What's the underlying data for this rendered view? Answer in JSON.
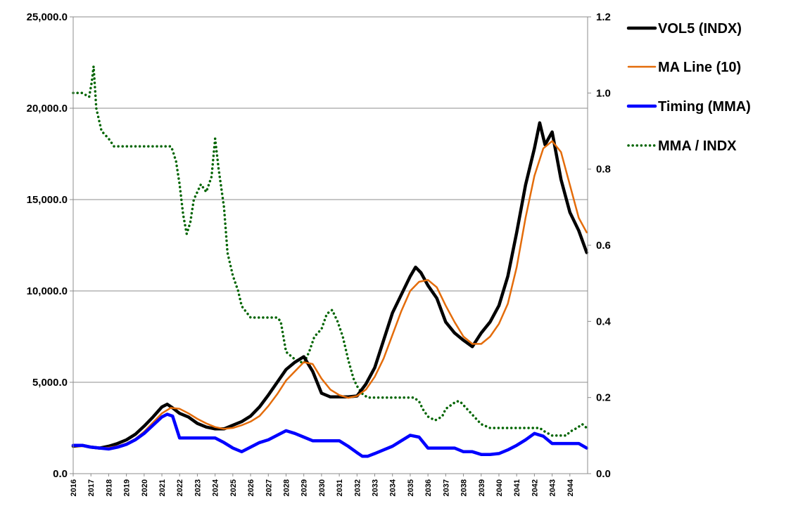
{
  "chart_data": {
    "type": "line",
    "title": "",
    "xlabel": "",
    "ylabel": "",
    "y2label": "",
    "xlim": [
      2016,
      2045
    ],
    "ylim": [
      0,
      25000
    ],
    "y2lim": [
      0,
      1.2
    ],
    "grid": true,
    "legend_position": "top-right",
    "y_ticks": [
      {
        "value": 0,
        "label": "0.0"
      },
      {
        "value": 5000,
        "label": "5,000.0"
      },
      {
        "value": 10000,
        "label": "10,000.0"
      },
      {
        "value": 15000,
        "label": "15,000.0"
      },
      {
        "value": 20000,
        "label": "20,000.0"
      },
      {
        "value": 25000,
        "label": "25,000.0"
      }
    ],
    "y2_ticks": [
      {
        "value": 0,
        "label": "0.0"
      },
      {
        "value": 0.2,
        "label": "0.2"
      },
      {
        "value": 0.4,
        "label": "0.4"
      },
      {
        "value": 0.6,
        "label": "0.6"
      },
      {
        "value": 0.8,
        "label": "0.8"
      },
      {
        "value": 1.0,
        "label": "1.0"
      },
      {
        "value": 1.2,
        "label": "1.2"
      }
    ],
    "x_ticks": [
      {
        "value": 2016,
        "label": "2016"
      },
      {
        "value": 2017,
        "label": "2017"
      },
      {
        "value": 2018,
        "label": "2018"
      },
      {
        "value": 2019,
        "label": "2019"
      },
      {
        "value": 2020,
        "label": "2020"
      },
      {
        "value": 2021,
        "label": "2021"
      },
      {
        "value": 2022,
        "label": "2022"
      },
      {
        "value": 2023,
        "label": "2023"
      },
      {
        "value": 2024,
        "label": "2024"
      },
      {
        "value": 2025,
        "label": "2025"
      },
      {
        "value": 2026,
        "label": "2026"
      },
      {
        "value": 2027,
        "label": "2027"
      },
      {
        "value": 2028,
        "label": "2028"
      },
      {
        "value": 2029,
        "label": "2029"
      },
      {
        "value": 2030,
        "label": "2030"
      },
      {
        "value": 2031,
        "label": "2031"
      },
      {
        "value": 2032,
        "label": "2032"
      },
      {
        "value": 2033,
        "label": "2033"
      },
      {
        "value": 2034,
        "label": "2034"
      },
      {
        "value": 2035,
        "label": "2035"
      },
      {
        "value": 2036,
        "label": "2036"
      },
      {
        "value": 2037,
        "label": "2037"
      },
      {
        "value": 2038,
        "label": "2038"
      },
      {
        "value": 2039,
        "label": "2039"
      },
      {
        "value": 2040,
        "label": "2040"
      },
      {
        "value": 2041,
        "label": "2041"
      },
      {
        "value": 2042,
        "label": "2042"
      },
      {
        "value": 2043,
        "label": "2043"
      },
      {
        "value": 2044,
        "label": "2044"
      }
    ],
    "series": [
      {
        "name": "VOL5 (INDX)",
        "axis": "left",
        "color": "#000000",
        "style": "solid-thick",
        "x": [
          2016,
          2016.5,
          2017,
          2017.5,
          2018,
          2018.5,
          2019,
          2019.5,
          2020,
          2020.5,
          2021,
          2021.3,
          2021.6,
          2022,
          2022.5,
          2023,
          2023.5,
          2024,
          2024.5,
          2025,
          2025.5,
          2026,
          2026.5,
          2027,
          2027.5,
          2028,
          2028.5,
          2029,
          2029.5,
          2030,
          2030.5,
          2031,
          2031.5,
          2032,
          2032.5,
          2033,
          2033.5,
          2034,
          2034.5,
          2035,
          2035.3,
          2035.6,
          2036,
          2036.5,
          2037,
          2037.5,
          2038,
          2038.5,
          2039,
          2039.5,
          2040,
          2040.5,
          2041,
          2041.5,
          2042,
          2042.3,
          2042.6,
          2043,
          2043.5,
          2044,
          2044.5,
          2044.95
        ],
        "values": [
          1500,
          1550,
          1450,
          1400,
          1500,
          1650,
          1850,
          2150,
          2600,
          3100,
          3650,
          3800,
          3600,
          3300,
          3100,
          2750,
          2550,
          2450,
          2450,
          2650,
          2850,
          3150,
          3650,
          4300,
          5000,
          5700,
          6100,
          6400,
          5600,
          4400,
          4200,
          4200,
          4200,
          4250,
          4900,
          5800,
          7300,
          8800,
          9800,
          10800,
          11300,
          11000,
          10300,
          9600,
          8300,
          7700,
          7300,
          6950,
          7700,
          8300,
          9200,
          10800,
          13200,
          15800,
          17800,
          19200,
          18000,
          18700,
          16100,
          14300,
          13300,
          12100
        ]
      },
      {
        "name": "MA Line (10)",
        "axis": "left",
        "color": "#e46c0a",
        "style": "solid",
        "x": [
          2016,
          2016.5,
          2017,
          2017.5,
          2018,
          2018.5,
          2019,
          2019.5,
          2020,
          2020.5,
          2021,
          2021.5,
          2022,
          2022.5,
          2023,
          2023.5,
          2024,
          2024.5,
          2025,
          2025.5,
          2026,
          2026.5,
          2027,
          2027.5,
          2028,
          2028.5,
          2029,
          2029.5,
          2030,
          2030.5,
          2031,
          2031.5,
          2032,
          2032.5,
          2033,
          2033.5,
          2034,
          2034.5,
          2035,
          2035.5,
          2036,
          2036.5,
          2037,
          2037.5,
          2038,
          2038.5,
          2039,
          2039.5,
          2040,
          2040.5,
          2041,
          2041.5,
          2042,
          2042.5,
          2043,
          2043.5,
          2044,
          2044.5,
          2044.95
        ],
        "values": [
          1500,
          1500,
          1480,
          1420,
          1420,
          1500,
          1650,
          1900,
          2300,
          2800,
          3300,
          3600,
          3550,
          3300,
          3000,
          2750,
          2550,
          2450,
          2500,
          2650,
          2850,
          3150,
          3700,
          4350,
          5100,
          5600,
          6100,
          6000,
          5200,
          4600,
          4300,
          4150,
          4250,
          4600,
          5300,
          6300,
          7600,
          8900,
          10000,
          10500,
          10600,
          10200,
          9200,
          8300,
          7500,
          7100,
          7100,
          7500,
          8200,
          9300,
          11300,
          14000,
          16300,
          17800,
          18200,
          17600,
          15800,
          14000,
          13200
        ]
      },
      {
        "name": "Timing (MMA)",
        "axis": "left",
        "color": "#0000ff",
        "style": "solid-thick",
        "x": [
          2016,
          2016.5,
          2017,
          2017.5,
          2018,
          2018.5,
          2019,
          2019.5,
          2020,
          2020.5,
          2021,
          2021.3,
          2021.6,
          2022,
          2022.5,
          2023,
          2023.5,
          2024,
          2024.5,
          2025,
          2025.5,
          2026,
          2026.5,
          2027,
          2027.5,
          2028,
          2028.5,
          2029,
          2029.5,
          2030,
          2030.5,
          2031,
          2031.5,
          2032,
          2032.3,
          2032.6,
          2033,
          2033.5,
          2034,
          2034.5,
          2035,
          2035.5,
          2036,
          2036.5,
          2037,
          2037.5,
          2038,
          2038.5,
          2039,
          2039.5,
          2040,
          2040.5,
          2041,
          2041.5,
          2042,
          2042.5,
          2043,
          2043.5,
          2044,
          2044.5,
          2044.95
        ],
        "values": [
          1550,
          1550,
          1450,
          1400,
          1350,
          1450,
          1600,
          1850,
          2200,
          2650,
          3100,
          3250,
          3150,
          1950,
          1950,
          1950,
          1950,
          1950,
          1700,
          1400,
          1200,
          1450,
          1700,
          1850,
          2100,
          2350,
          2200,
          2000,
          1800,
          1800,
          1800,
          1800,
          1500,
          1150,
          950,
          950,
          1100,
          1300,
          1500,
          1800,
          2100,
          2000,
          1400,
          1400,
          1400,
          1400,
          1200,
          1200,
          1050,
          1050,
          1100,
          1300,
          1550,
          1850,
          2200,
          2050,
          1650,
          1650,
          1650,
          1650,
          1400
        ]
      },
      {
        "name": "MMA / INDX",
        "axis": "right",
        "color": "#006400",
        "style": "dotted",
        "x": [
          2016,
          2016.5,
          2016.9,
          2017.05,
          2017.15,
          2017.3,
          2017.6,
          2018,
          2018.3,
          2019,
          2019.5,
          2020,
          2020.5,
          2021,
          2021.5,
          2021.6,
          2021.8,
          2022.0,
          2022.2,
          2022.4,
          2022.6,
          2022.8,
          2023.0,
          2023.2,
          2023.5,
          2023.8,
          2024.0,
          2024.2,
          2024.5,
          2024.7,
          2025,
          2025.3,
          2025.5,
          2026,
          2026.5,
          2027,
          2027.5,
          2027.7,
          2027.85,
          2028,
          2028.5,
          2029,
          2029.3,
          2029.6,
          2030,
          2030.3,
          2030.6,
          2030.9,
          2031.2,
          2031.5,
          2031.8,
          2032,
          2032.3,
          2032.6,
          2033,
          2033.5,
          2034,
          2034.5,
          2035,
          2035.2,
          2035.5,
          2035.7,
          2036,
          2036.4,
          2036.8,
          2037,
          2037.3,
          2037.6,
          2037.8,
          2038,
          2038.4,
          2038.8,
          2039,
          2039.5,
          2040,
          2040.5,
          2041,
          2041.5,
          2042,
          2042.3,
          2042.6,
          2043,
          2043.4,
          2043.8,
          2044,
          2044.4,
          2044.7,
          2044.95
        ],
        "values": [
          1.0,
          1.0,
          0.99,
          1.03,
          1.07,
          0.96,
          0.9,
          0.88,
          0.86,
          0.86,
          0.86,
          0.86,
          0.86,
          0.86,
          0.86,
          0.85,
          0.82,
          0.76,
          0.68,
          0.63,
          0.66,
          0.72,
          0.74,
          0.76,
          0.74,
          0.78,
          0.88,
          0.8,
          0.7,
          0.58,
          0.52,
          0.48,
          0.44,
          0.41,
          0.41,
          0.41,
          0.41,
          0.4,
          0.36,
          0.32,
          0.3,
          0.29,
          0.32,
          0.36,
          0.38,
          0.42,
          0.43,
          0.4,
          0.36,
          0.3,
          0.25,
          0.23,
          0.21,
          0.2,
          0.2,
          0.2,
          0.2,
          0.2,
          0.2,
          0.2,
          0.19,
          0.17,
          0.15,
          0.14,
          0.15,
          0.17,
          0.18,
          0.19,
          0.19,
          0.18,
          0.16,
          0.14,
          0.13,
          0.12,
          0.12,
          0.12,
          0.12,
          0.12,
          0.12,
          0.12,
          0.11,
          0.1,
          0.1,
          0.1,
          0.11,
          0.12,
          0.13,
          0.12
        ]
      }
    ]
  }
}
